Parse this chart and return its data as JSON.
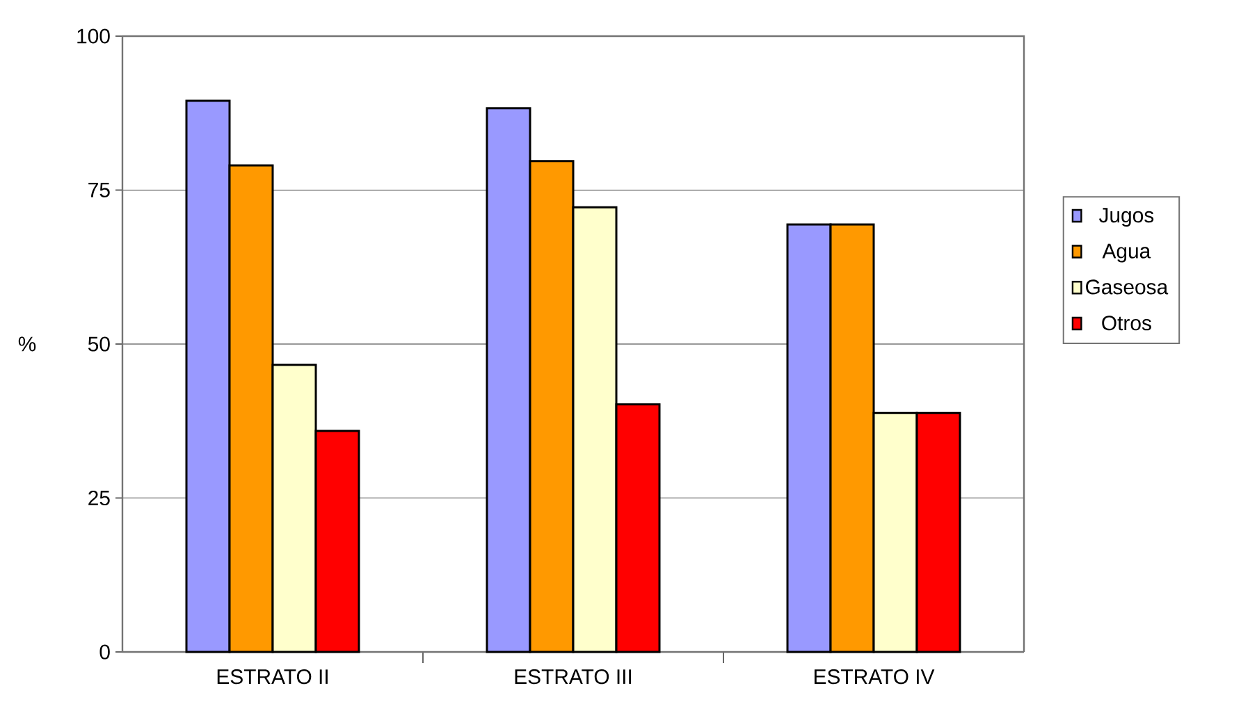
{
  "chart_data": {
    "type": "bar",
    "ylabel": "%",
    "categories": [
      "ESTRATO II",
      "ESTRATO III",
      "ESTRATO IV"
    ],
    "series": [
      {
        "name": "Jugos",
        "color": "#9999ff",
        "values": [
          89.5,
          88.3,
          69.4
        ]
      },
      {
        "name": "Agua",
        "color": "#ff9900",
        "values": [
          79.0,
          79.7,
          69.4
        ]
      },
      {
        "name": "Gaseosa",
        "color": "#ffffcc",
        "values": [
          46.6,
          72.2,
          38.8
        ]
      },
      {
        "name": "Otros",
        "color": "#ff0000",
        "values": [
          35.9,
          40.2,
          38.8
        ]
      }
    ],
    "ylim": [
      0,
      100
    ],
    "yticks": [
      0,
      25,
      50,
      75,
      100
    ],
    "grid": "y",
    "legend": "right"
  }
}
